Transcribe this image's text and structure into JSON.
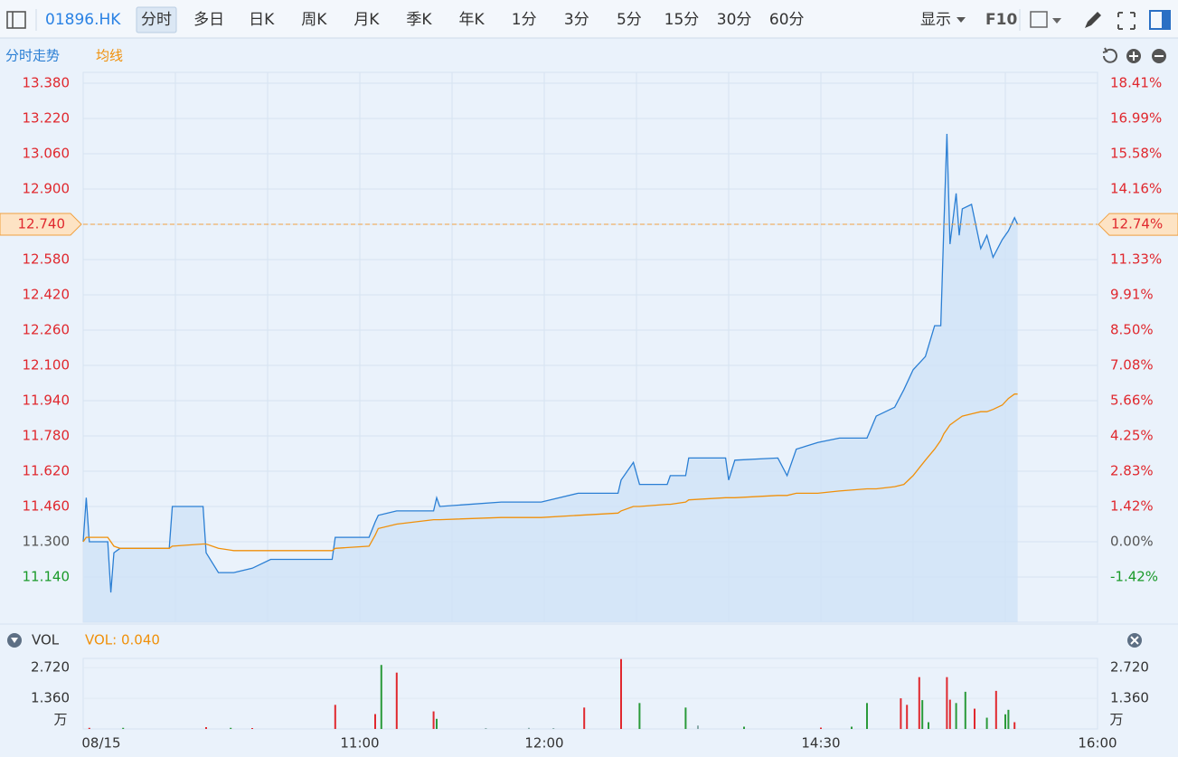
{
  "toolbar": {
    "symbol": "01896.HK",
    "tabs": [
      "分时",
      "多日",
      "日K",
      "周K",
      "月K",
      "季K",
      "年K",
      "1分",
      "3分",
      "5分",
      "15分",
      "30分",
      "60分"
    ],
    "active_index": 0,
    "display": "显示",
    "f10": "F10"
  },
  "chart_data": [
    {
      "type": "line",
      "x": [
        "09:30",
        "09:31",
        "09:32",
        "09:38",
        "09:39",
        "09:40",
        "09:42",
        "09:58",
        "09:59",
        "10:09",
        "10:10",
        "10:14",
        "10:19",
        "10:25",
        "10:31",
        "10:51",
        "10:52",
        "11:03",
        "11:05",
        "11:06",
        "11:12",
        "11:24",
        "11:25",
        "11:26",
        "11:46",
        "11:59",
        "13:11",
        "13:24",
        "13:25",
        "13:29",
        "13:31",
        "13:40",
        "13:41",
        "13:46",
        "13:47",
        "13:59",
        "14:00",
        "14:02",
        "14:16",
        "14:19",
        "14:22",
        "14:29",
        "14:36",
        "14:45",
        "14:48",
        "14:54",
        "14:57",
        "15:00",
        "15:04",
        "15:07",
        "15:09",
        "15:10",
        "15:11",
        "15:12",
        "15:14",
        "15:15",
        "15:16",
        "15:19",
        "15:22",
        "15:24",
        "15:26",
        "15:29",
        "15:31",
        "15:33",
        "15:34"
      ],
      "series": [
        {
          "name": "分时走势",
          "color": "#2b7fd4",
          "values": [
            11.3,
            11.5,
            11.3,
            11.3,
            11.07,
            11.25,
            11.27,
            11.27,
            11.46,
            11.46,
            11.25,
            11.16,
            11.16,
            11.18,
            11.22,
            11.22,
            11.32,
            11.32,
            11.39,
            11.42,
            11.44,
            11.44,
            11.5,
            11.46,
            11.48,
            11.48,
            11.52,
            11.52,
            11.58,
            11.66,
            11.56,
            11.56,
            11.6,
            11.6,
            11.68,
            11.68,
            11.58,
            11.67,
            11.68,
            11.6,
            11.72,
            11.75,
            11.77,
            11.77,
            11.87,
            11.91,
            11.99,
            12.08,
            12.14,
            12.28,
            12.28,
            12.73,
            13.15,
            12.65,
            12.88,
            12.69,
            12.81,
            12.83,
            12.63,
            12.69,
            12.59,
            12.67,
            12.71,
            12.77,
            12.74
          ]
        },
        {
          "name": "均线",
          "color": "#f0900a",
          "values": [
            11.3,
            11.32,
            11.32,
            11.32,
            11.3,
            11.28,
            11.27,
            11.27,
            11.28,
            11.29,
            11.29,
            11.27,
            11.26,
            11.26,
            11.26,
            11.26,
            11.27,
            11.28,
            11.33,
            11.36,
            11.38,
            11.4,
            11.4,
            11.4,
            11.41,
            11.41,
            11.42,
            11.43,
            11.44,
            11.46,
            11.46,
            11.47,
            11.47,
            11.48,
            11.49,
            11.5,
            11.5,
            11.5,
            11.51,
            11.51,
            11.52,
            11.52,
            11.53,
            11.54,
            11.54,
            11.55,
            11.56,
            11.6,
            11.67,
            11.72,
            11.76,
            11.79,
            11.81,
            11.83,
            11.85,
            11.86,
            11.87,
            11.88,
            11.89,
            11.89,
            11.9,
            11.92,
            11.95,
            11.97,
            11.97
          ]
        }
      ],
      "area_color": "#cfe2f8",
      "xlim": [
        "09:30",
        "16:00"
      ],
      "xgrid": [
        "10:00",
        "10:30",
        "11:00",
        "11:30",
        "12:00",
        "13:30",
        "14:00",
        "14:30",
        "15:00",
        "15:30"
      ],
      "ylim": [
        10.935,
        13.429
      ],
      "yticks": [
        {
          "value": 13.38,
          "label": "13.380"
        },
        {
          "value": 13.22,
          "label": "13.220"
        },
        {
          "value": 13.06,
          "label": "13.060"
        },
        {
          "value": 12.9,
          "label": "12.900"
        },
        {
          "value": 12.74,
          "label": "12.740"
        },
        {
          "value": 12.58,
          "label": "12.580"
        },
        {
          "value": 12.42,
          "label": "12.420"
        },
        {
          "value": 12.26,
          "label": "12.260"
        },
        {
          "value": 12.1,
          "label": "12.100"
        },
        {
          "value": 11.94,
          "label": "11.940"
        },
        {
          "value": 11.78,
          "label": "11.780"
        },
        {
          "value": 11.62,
          "label": "11.620"
        },
        {
          "value": 11.46,
          "label": "11.460"
        },
        {
          "value": 11.3,
          "label": "11.300"
        },
        {
          "value": 11.14,
          "label": "11.140"
        }
      ],
      "y2lim": [
        -3.23,
        18.841
      ],
      "y2ticks": [
        {
          "value": 18.41,
          "label": "18.41%"
        },
        {
          "value": 16.99,
          "label": "16.99%"
        },
        {
          "value": 15.58,
          "label": "15.58%"
        },
        {
          "value": 14.16,
          "label": "14.16%"
        },
        {
          "value": 12.74,
          "label": "12.74%"
        },
        {
          "value": 11.33,
          "label": "11.33%"
        },
        {
          "value": 9.91,
          "label": "9.91%"
        },
        {
          "value": 8.5,
          "label": "8.50%"
        },
        {
          "value": 7.08,
          "label": "7.08%"
        },
        {
          "value": 5.66,
          "label": "5.66%"
        },
        {
          "value": 4.25,
          "label": "4.25%"
        },
        {
          "value": 2.83,
          "label": "2.83%"
        },
        {
          "value": 1.42,
          "label": "1.42%"
        },
        {
          "value": 0,
          "label": "0.00%"
        },
        {
          "value": -1.42,
          "label": "-1.42%"
        }
      ],
      "last_price": {
        "value": 12.74,
        "label": "12.740"
      },
      "last_pct": {
        "value": 12.74,
        "label": "12.74%"
      },
      "grid": true
    },
    {
      "type": "bar",
      "title": "VOL",
      "subtitle": "VOL: 0.040",
      "unit": "万",
      "x": [
        "09:32",
        "09:43",
        "10:10",
        "10:18",
        "10:25",
        "10:52",
        "11:05",
        "11:07",
        "11:12",
        "11:24",
        "11:25",
        "11:41",
        "11:55",
        "13:03",
        "13:13",
        "13:25",
        "13:31",
        "13:46",
        "13:50",
        "14:05",
        "14:30",
        "14:40",
        "14:45",
        "14:56",
        "14:58",
        "15:02",
        "15:03",
        "15:05",
        "15:11",
        "15:12",
        "15:14",
        "15:17",
        "15:20",
        "15:24",
        "15:27",
        "15:30",
        "15:31",
        "15:33"
      ],
      "values": [
        0.05,
        0.05,
        0.08,
        0.05,
        0.04,
        1.07,
        0.66,
        2.84,
        2.5,
        0.78,
        0.45,
        0.04,
        0.05,
        0.04,
        0.95,
        3.1,
        1.15,
        0.95,
        0.15,
        0.1,
        0.06,
        0.1,
        1.15,
        1.36,
        1.07,
        2.3,
        1.28,
        0.3,
        2.3,
        1.3,
        1.15,
        1.65,
        0.9,
        0.5,
        1.69,
        0.65,
        0.85,
        0.3
      ],
      "colors": [
        "#e0282e",
        "#2a9a3a",
        "#e0282e",
        "#2a9a3a",
        "#e0282e",
        "#e0282e",
        "#e0282e",
        "#2a9a3a",
        "#e0282e",
        "#e0282e",
        "#2a9a3a",
        "#8aa",
        "#8aa",
        "#8aa",
        "#e0282e",
        "#e0282e",
        "#2a9a3a",
        "#2a9a3a",
        "#8aa",
        "#2a9a3a",
        "#e0282e",
        "#2a9a3a",
        "#2a9a3a",
        "#e0282e",
        "#e0282e",
        "#e0282e",
        "#2a9a3a",
        "#2a9a3a",
        "#e0282e",
        "#e0282e",
        "#2a9a3a",
        "#2a9a3a",
        "#e0282e",
        "#2a9a3a",
        "#e0282e",
        "#2a9a3a",
        "#2a9a3a",
        "#e0282e"
      ],
      "xlim": [
        "09:30",
        "16:00"
      ],
      "xticks": [
        {
          "value": "09:30",
          "label": "08/15"
        },
        "11:00",
        "12:00",
        "14:30",
        "16:00"
      ],
      "ylim": [
        0,
        3.13
      ],
      "yticks": [
        {
          "value": 2.72,
          "label": "2.720"
        },
        {
          "value": 1.36,
          "label": "1.360"
        }
      ]
    }
  ]
}
